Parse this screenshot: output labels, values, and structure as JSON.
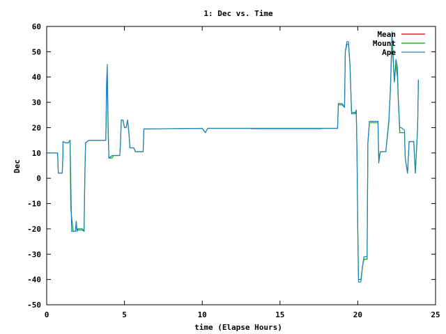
{
  "chart_data": {
    "type": "line",
    "title": "1: Dec vs. Time",
    "xlabel": "time (Elapse Hours)",
    "ylabel": "Dec",
    "xlim": [
      0,
      25
    ],
    "ylim": [
      -50,
      60
    ],
    "xticks": [
      0,
      5,
      10,
      15,
      20,
      25
    ],
    "yticks": [
      -50,
      -40,
      -30,
      -20,
      -10,
      0,
      10,
      20,
      30,
      40,
      50,
      60
    ],
    "grid": false,
    "legend_position": "top-right",
    "series": [
      {
        "name": "Mean",
        "color": "#cc0000",
        "points": [
          [
            13.1,
            19.6
          ],
          [
            17.7,
            19.6
          ]
        ]
      },
      {
        "name": "Mount",
        "color": "#00a000",
        "points": [
          [
            0,
            10
          ],
          [
            0.6,
            10
          ],
          [
            0.7,
            10
          ],
          [
            0.75,
            2
          ],
          [
            1.0,
            2
          ],
          [
            1.05,
            10
          ],
          [
            1.05,
            14.5
          ],
          [
            1.2,
            14
          ],
          [
            1.4,
            14
          ],
          [
            1.5,
            15
          ],
          [
            1.55,
            -12
          ],
          [
            1.6,
            -15
          ],
          [
            1.7,
            -21
          ],
          [
            1.85,
            -21
          ],
          [
            1.9,
            -17
          ],
          [
            1.95,
            -21
          ],
          [
            2.0,
            -20
          ],
          [
            2.2,
            -20
          ],
          [
            2.3,
            -20
          ],
          [
            2.4,
            -21
          ],
          [
            2.45,
            0
          ],
          [
            2.5,
            14
          ],
          [
            2.7,
            15
          ],
          [
            3.3,
            15
          ],
          [
            3.8,
            15
          ],
          [
            3.85,
            32
          ],
          [
            3.9,
            40
          ],
          [
            3.95,
            18
          ],
          [
            4.0,
            8
          ],
          [
            4.2,
            8
          ],
          [
            4.3,
            9
          ],
          [
            4.7,
            9
          ],
          [
            4.75,
            15
          ],
          [
            4.8,
            23
          ],
          [
            4.9,
            23
          ],
          [
            5.0,
            20
          ],
          [
            5.1,
            20
          ],
          [
            5.2,
            23
          ],
          [
            5.3,
            17
          ],
          [
            5.35,
            12
          ],
          [
            5.6,
            12
          ],
          [
            5.7,
            10.5
          ],
          [
            6.0,
            10.5
          ],
          [
            6.2,
            10.5
          ],
          [
            6.25,
            19.5
          ],
          [
            10.0,
            19.7
          ],
          [
            10.2,
            18
          ],
          [
            10.35,
            19.7
          ],
          [
            13.1,
            19.7
          ],
          [
            17.7,
            19.7
          ],
          [
            18.7,
            19.7
          ],
          [
            18.75,
            29
          ],
          [
            19.0,
            29
          ],
          [
            19.15,
            28
          ],
          [
            19.2,
            50
          ],
          [
            19.3,
            53
          ],
          [
            19.4,
            53
          ],
          [
            19.5,
            45
          ],
          [
            19.55,
            35
          ],
          [
            19.6,
            26
          ],
          [
            19.85,
            26
          ],
          [
            19.9,
            27
          ],
          [
            19.95,
            10
          ],
          [
            20.0,
            -20
          ],
          [
            20.05,
            -40
          ],
          [
            20.2,
            -40
          ],
          [
            20.3,
            -35
          ],
          [
            20.4,
            -32
          ],
          [
            20.6,
            -32
          ],
          [
            20.65,
            14
          ],
          [
            20.75,
            22
          ],
          [
            21.2,
            22
          ],
          [
            21.3,
            22
          ],
          [
            21.35,
            8
          ],
          [
            21.45,
            10.5
          ],
          [
            21.8,
            10.5
          ],
          [
            22.0,
            23
          ],
          [
            22.1,
            35
          ],
          [
            22.2,
            55
          ],
          [
            22.35,
            38
          ],
          [
            22.45,
            45
          ],
          [
            22.55,
            40
          ],
          [
            22.6,
            32
          ],
          [
            22.7,
            18
          ],
          [
            22.8,
            18
          ],
          [
            23.0,
            18
          ],
          [
            23.05,
            8
          ],
          [
            23.2,
            2
          ],
          [
            23.3,
            14.5
          ],
          [
            23.6,
            14.5
          ],
          [
            23.65,
            8
          ],
          [
            23.7,
            2
          ],
          [
            23.85,
            20
          ],
          [
            23.9,
            39
          ]
        ]
      },
      {
        "name": "Ape",
        "color": "#2080c0",
        "points": [
          [
            0,
            10
          ],
          [
            0.6,
            10
          ],
          [
            0.7,
            10
          ],
          [
            0.75,
            2
          ],
          [
            1.0,
            2
          ],
          [
            1.05,
            10
          ],
          [
            1.05,
            14.5
          ],
          [
            1.2,
            14
          ],
          [
            1.4,
            14
          ],
          [
            1.5,
            15
          ],
          [
            1.55,
            0
          ],
          [
            1.6,
            -21
          ],
          [
            1.85,
            -21
          ],
          [
            1.9,
            -17
          ],
          [
            1.95,
            -21
          ],
          [
            2.0,
            -20.5
          ],
          [
            2.3,
            -20.5
          ],
          [
            2.4,
            -21
          ],
          [
            2.45,
            0
          ],
          [
            2.5,
            14
          ],
          [
            2.7,
            15
          ],
          [
            3.3,
            15
          ],
          [
            3.8,
            15
          ],
          [
            3.85,
            38
          ],
          [
            3.9,
            45
          ],
          [
            3.95,
            20
          ],
          [
            4.0,
            8
          ],
          [
            4.2,
            9
          ],
          [
            4.3,
            9
          ],
          [
            4.7,
            9
          ],
          [
            4.75,
            15
          ],
          [
            4.8,
            23
          ],
          [
            4.9,
            23
          ],
          [
            5.0,
            20
          ],
          [
            5.1,
            20
          ],
          [
            5.2,
            23
          ],
          [
            5.3,
            17
          ],
          [
            5.35,
            12
          ],
          [
            5.6,
            12
          ],
          [
            5.7,
            10.5
          ],
          [
            6.0,
            10.5
          ],
          [
            6.2,
            10.5
          ],
          [
            6.25,
            19.5
          ],
          [
            10.0,
            19.7
          ],
          [
            10.2,
            18
          ],
          [
            10.35,
            19.7
          ],
          [
            13.1,
            19.7
          ],
          [
            17.7,
            19.7
          ],
          [
            18.7,
            19.7
          ],
          [
            18.75,
            29.5
          ],
          [
            19.0,
            29.5
          ],
          [
            19.15,
            28
          ],
          [
            19.2,
            50
          ],
          [
            19.3,
            54
          ],
          [
            19.4,
            54
          ],
          [
            19.5,
            45
          ],
          [
            19.55,
            35
          ],
          [
            19.6,
            25.5
          ],
          [
            19.85,
            25.5
          ],
          [
            19.9,
            27
          ],
          [
            19.95,
            10
          ],
          [
            20.0,
            -20
          ],
          [
            20.05,
            -41
          ],
          [
            20.2,
            -41
          ],
          [
            20.3,
            -35
          ],
          [
            20.4,
            -31
          ],
          [
            20.6,
            -31
          ],
          [
            20.65,
            14
          ],
          [
            20.75,
            22.5
          ],
          [
            21.2,
            22.5
          ],
          [
            21.3,
            22.5
          ],
          [
            21.35,
            6
          ],
          [
            21.45,
            10.5
          ],
          [
            21.8,
            10.5
          ],
          [
            22.0,
            22
          ],
          [
            22.1,
            36
          ],
          [
            22.2,
            58
          ],
          [
            22.35,
            38
          ],
          [
            22.45,
            47
          ],
          [
            22.55,
            44
          ],
          [
            22.6,
            32
          ],
          [
            22.7,
            20
          ],
          [
            22.8,
            20
          ],
          [
            23.0,
            19
          ],
          [
            23.05,
            8
          ],
          [
            23.2,
            2
          ],
          [
            23.3,
            14.5
          ],
          [
            23.6,
            14.5
          ],
          [
            23.65,
            8
          ],
          [
            23.7,
            2
          ],
          [
            23.85,
            20
          ],
          [
            23.9,
            39
          ]
        ]
      }
    ]
  }
}
